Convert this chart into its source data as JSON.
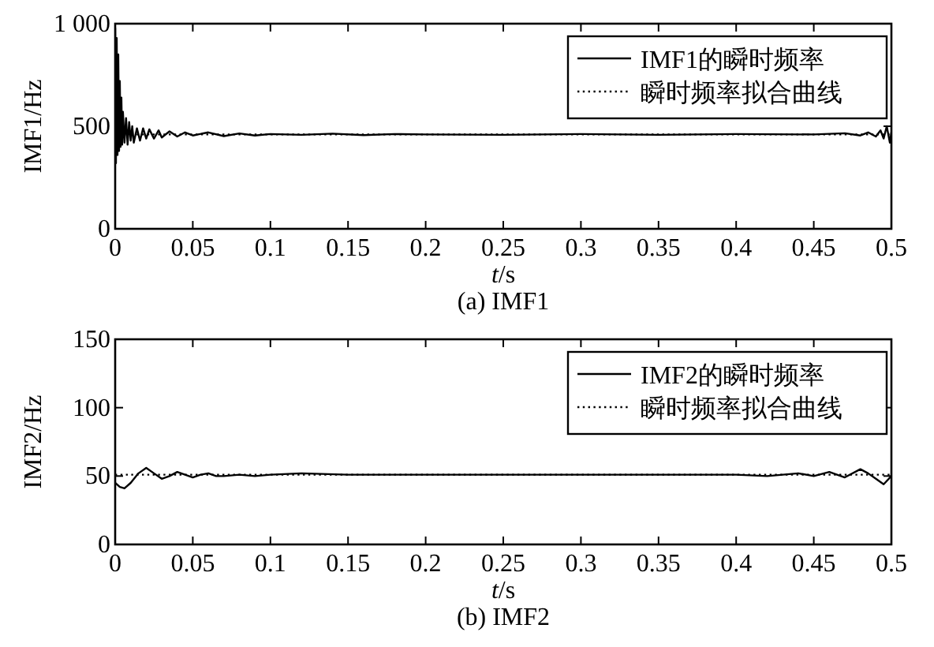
{
  "chart_data": [
    {
      "type": "line",
      "title": "(a) IMF1",
      "xlabel": "*t*/s",
      "ylabel": "IMF1/Hz",
      "xlim": [
        0,
        0.5
      ],
      "ylim": [
        0,
        1000
      ],
      "xticks": [
        0,
        0.05,
        0.1,
        0.15,
        0.2,
        0.25,
        0.3,
        0.35,
        0.4,
        0.45,
        0.5
      ],
      "yticks": [
        0,
        500,
        {
          "value": 1000,
          "label": "1 000"
        }
      ],
      "legend": "top right",
      "grid": false,
      "marker": "none",
      "series": [
        {
          "name": "IMF1的瞬时频率",
          "color": "#000000",
          "line_style": "solid",
          "x": [
            0,
            0.0005,
            0.001,
            0.0015,
            0.002,
            0.0025,
            0.003,
            0.0035,
            0.004,
            0.0045,
            0.005,
            0.006,
            0.007,
            0.008,
            0.009,
            0.01,
            0.011,
            0.012,
            0.014,
            0.016,
            0.018,
            0.02,
            0.022,
            0.025,
            0.028,
            0.03,
            0.035,
            0.04,
            0.045,
            0.05,
            0.06,
            0.07,
            0.08,
            0.09,
            0.1,
            0.12,
            0.14,
            0.16,
            0.18,
            0.2,
            0.25,
            0.3,
            0.35,
            0.4,
            0.45,
            0.47,
            0.48,
            0.485,
            0.49,
            0.493,
            0.495,
            0.497,
            0.499,
            0.5
          ],
          "values": [
            980,
            320,
            930,
            360,
            850,
            380,
            720,
            400,
            640,
            410,
            570,
            420,
            540,
            410,
            520,
            430,
            500,
            420,
            490,
            430,
            490,
            440,
            485,
            440,
            480,
            445,
            475,
            450,
            470,
            455,
            470,
            452,
            465,
            455,
            462,
            458,
            464,
            457,
            462,
            460,
            458,
            462,
            458,
            462,
            460,
            466,
            455,
            470,
            450,
            480,
            440,
            500,
            420,
            470
          ]
        },
        {
          "name": "瞬时频率拟合曲线",
          "color": "#000000",
          "line_style": "dotted",
          "x": [
            0,
            0.5
          ],
          "values": [
            460,
            460
          ]
        }
      ]
    },
    {
      "type": "line",
      "title": "(b) IMF2",
      "xlabel": "*t*/s",
      "ylabel": "IMF2/Hz",
      "xlim": [
        0,
        0.5
      ],
      "ylim": [
        0,
        150
      ],
      "xticks": [
        0,
        0.05,
        0.1,
        0.15,
        0.2,
        0.25,
        0.3,
        0.35,
        0.4,
        0.45,
        0.5
      ],
      "yticks": [
        0,
        50,
        100,
        150
      ],
      "legend": "top right",
      "grid": false,
      "marker": "none",
      "series": [
        {
          "name": "IMF2的瞬时频率",
          "color": "#000000",
          "line_style": "solid",
          "x": [
            0,
            0.003,
            0.006,
            0.01,
            0.015,
            0.02,
            0.025,
            0.03,
            0.035,
            0.04,
            0.045,
            0.05,
            0.055,
            0.06,
            0.065,
            0.07,
            0.08,
            0.09,
            0.1,
            0.12,
            0.15,
            0.2,
            0.3,
            0.4,
            0.42,
            0.44,
            0.45,
            0.46,
            0.47,
            0.48,
            0.485,
            0.49,
            0.495,
            0.5
          ],
          "values": [
            45,
            42,
            41,
            45,
            52,
            56,
            52,
            48,
            50,
            53,
            51,
            49,
            51,
            52,
            50,
            50,
            51,
            50,
            51,
            52,
            51,
            51,
            51,
            51,
            50,
            52,
            50,
            53,
            49,
            55,
            52,
            48,
            44,
            50
          ]
        },
        {
          "name": "瞬时频率拟合曲线",
          "color": "#000000",
          "line_style": "dotted",
          "x": [
            0,
            0.5
          ],
          "values": [
            51,
            51
          ]
        }
      ]
    }
  ]
}
